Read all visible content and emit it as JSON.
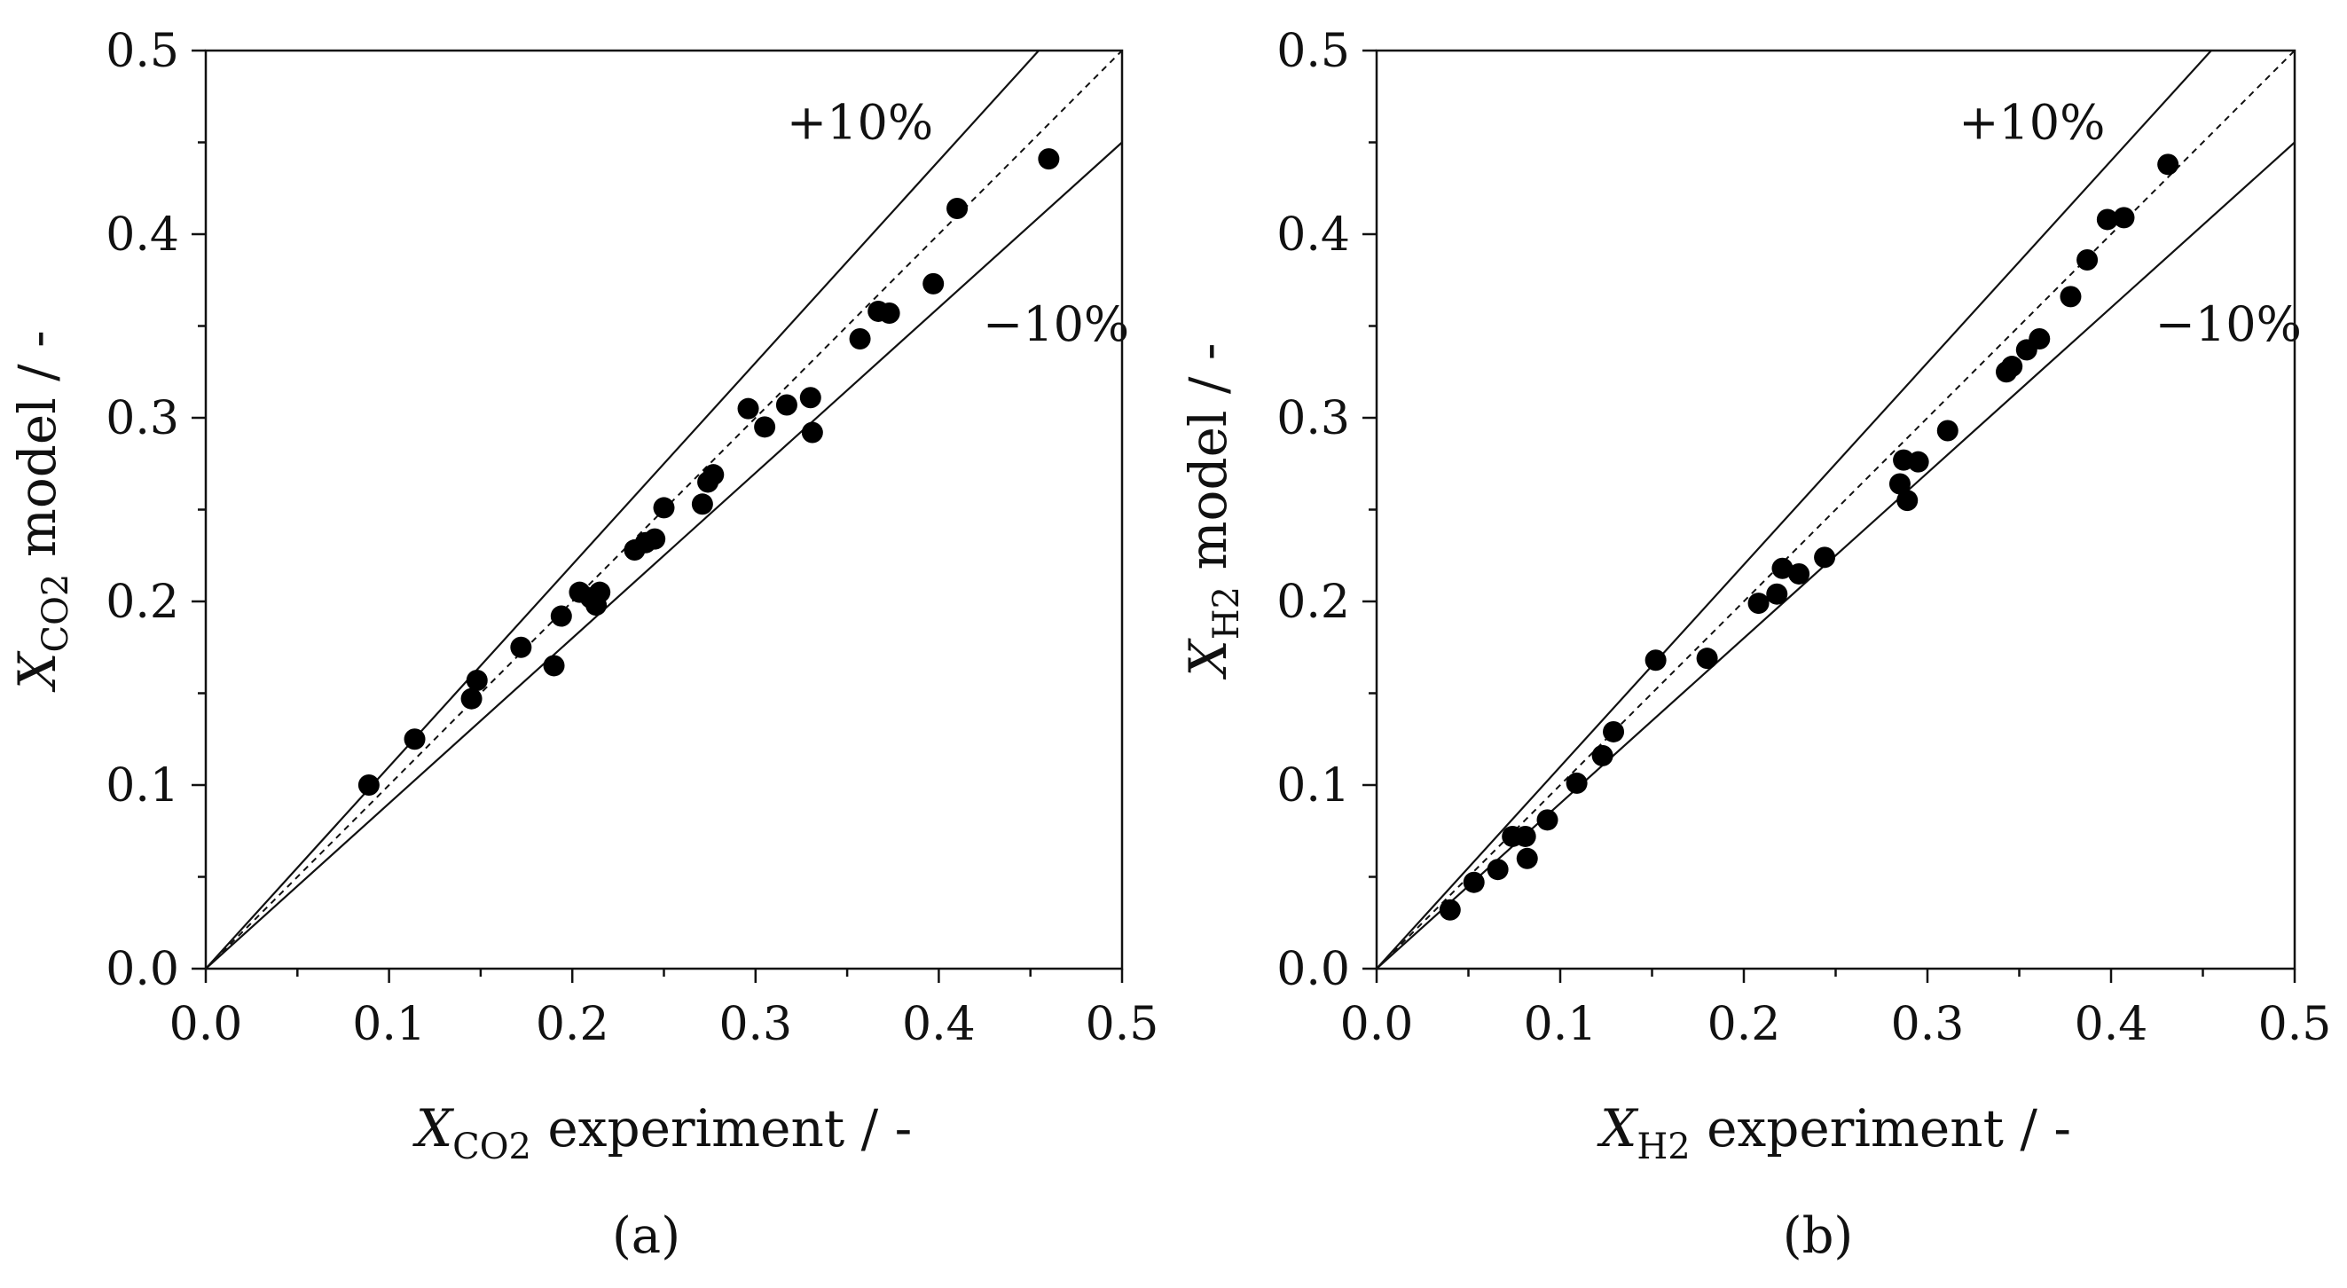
{
  "chart_data": [
    {
      "type": "scatter",
      "panel_label": "(a)",
      "xlabel": {
        "symbol": "X",
        "subscript": "CO2",
        "suffix": " experiment / -"
      },
      "ylabel": {
        "symbol": "X",
        "subscript": "CO2",
        "suffix": " model / -"
      },
      "xlim": [
        0,
        0.5
      ],
      "ylim": [
        0,
        0.5
      ],
      "xticks": [
        "0.0",
        "0.1",
        "0.2",
        "0.3",
        "0.4",
        "0.5"
      ],
      "yticks": [
        "0.0",
        "0.1",
        "0.2",
        "0.3",
        "0.4",
        "0.5"
      ],
      "reference_lines": [
        {
          "name": "parity",
          "slope": 1.0,
          "style": "dashed"
        },
        {
          "name": "+10%",
          "slope": 1.1,
          "style": "solid"
        },
        {
          "name": "-10%",
          "slope": 0.9,
          "style": "solid"
        }
      ],
      "band_labels": {
        "upper": "+10%",
        "lower": "−10%"
      },
      "series": [
        {
          "name": "data",
          "x": [
            0.089,
            0.114,
            0.145,
            0.148,
            0.172,
            0.19,
            0.194,
            0.204,
            0.21,
            0.213,
            0.215,
            0.234,
            0.24,
            0.245,
            0.25,
            0.271,
            0.274,
            0.277,
            0.296,
            0.305,
            0.317,
            0.33,
            0.331,
            0.357,
            0.367,
            0.373,
            0.397,
            0.41,
            0.46
          ],
          "y": [
            0.1,
            0.125,
            0.147,
            0.157,
            0.175,
            0.165,
            0.192,
            0.205,
            0.202,
            0.198,
            0.205,
            0.228,
            0.232,
            0.234,
            0.251,
            0.253,
            0.265,
            0.269,
            0.305,
            0.295,
            0.307,
            0.311,
            0.292,
            0.343,
            0.358,
            0.357,
            0.373,
            0.414,
            0.441
          ]
        }
      ]
    },
    {
      "type": "scatter",
      "panel_label": "(b)",
      "xlabel": {
        "symbol": "X",
        "subscript": "H2",
        "suffix": " experiment / -"
      },
      "ylabel": {
        "symbol": "X",
        "subscript": "H2",
        "suffix": " model / -"
      },
      "xlim": [
        0,
        0.5
      ],
      "ylim": [
        0,
        0.5
      ],
      "xticks": [
        "0.0",
        "0.1",
        "0.2",
        "0.3",
        "0.4",
        "0.5"
      ],
      "yticks": [
        "0.0",
        "0.1",
        "0.2",
        "0.3",
        "0.4",
        "0.5"
      ],
      "reference_lines": [
        {
          "name": "parity",
          "slope": 1.0,
          "style": "dashed"
        },
        {
          "name": "+10%",
          "slope": 1.1,
          "style": "solid"
        },
        {
          "name": "-10%",
          "slope": 0.9,
          "style": "solid"
        }
      ],
      "band_labels": {
        "upper": "+10%",
        "lower": "−10%"
      },
      "series": [
        {
          "name": "data",
          "x": [
            0.04,
            0.053,
            0.066,
            0.074,
            0.081,
            0.082,
            0.093,
            0.109,
            0.123,
            0.129,
            0.152,
            0.18,
            0.208,
            0.218,
            0.221,
            0.23,
            0.244,
            0.285,
            0.287,
            0.289,
            0.295,
            0.311,
            0.343,
            0.346,
            0.354,
            0.361,
            0.378,
            0.387,
            0.398,
            0.407,
            0.431
          ],
          "y": [
            0.032,
            0.047,
            0.054,
            0.072,
            0.072,
            0.06,
            0.081,
            0.101,
            0.116,
            0.129,
            0.168,
            0.169,
            0.199,
            0.204,
            0.218,
            0.215,
            0.224,
            0.264,
            0.277,
            0.255,
            0.276,
            0.293,
            0.325,
            0.328,
            0.337,
            0.343,
            0.366,
            0.386,
            0.408,
            0.409,
            0.438
          ]
        }
      ]
    }
  ]
}
